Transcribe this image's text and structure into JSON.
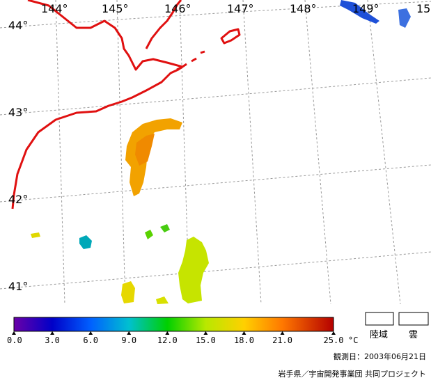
{
  "map": {
    "longitude_labels": [
      "144°",
      "145°",
      "146°",
      "147°",
      "148°",
      "149°",
      "15"
    ],
    "latitude_labels": [
      "44°",
      "43°",
      "42°",
      "41°"
    ]
  },
  "colorbar": {
    "tick_labels": [
      "0.0",
      "3.0",
      "6.0",
      "9.0",
      "12.0",
      "15.0",
      "18.0",
      "21.0",
      "25.0"
    ],
    "unit": "°C",
    "colors": [
      "#6a00a8",
      "#0000c8",
      "#00a0ff",
      "#00c8a0",
      "#00d000",
      "#c8e800",
      "#ffd000",
      "#ff7800",
      "#b40000"
    ]
  },
  "legend": {
    "land_label": "陸域",
    "cloud_label": "雲"
  },
  "observation_date": "観測日：2003年06月21日",
  "credit": "岩手県／宇宙開発事業団 共同プロジェクト"
}
